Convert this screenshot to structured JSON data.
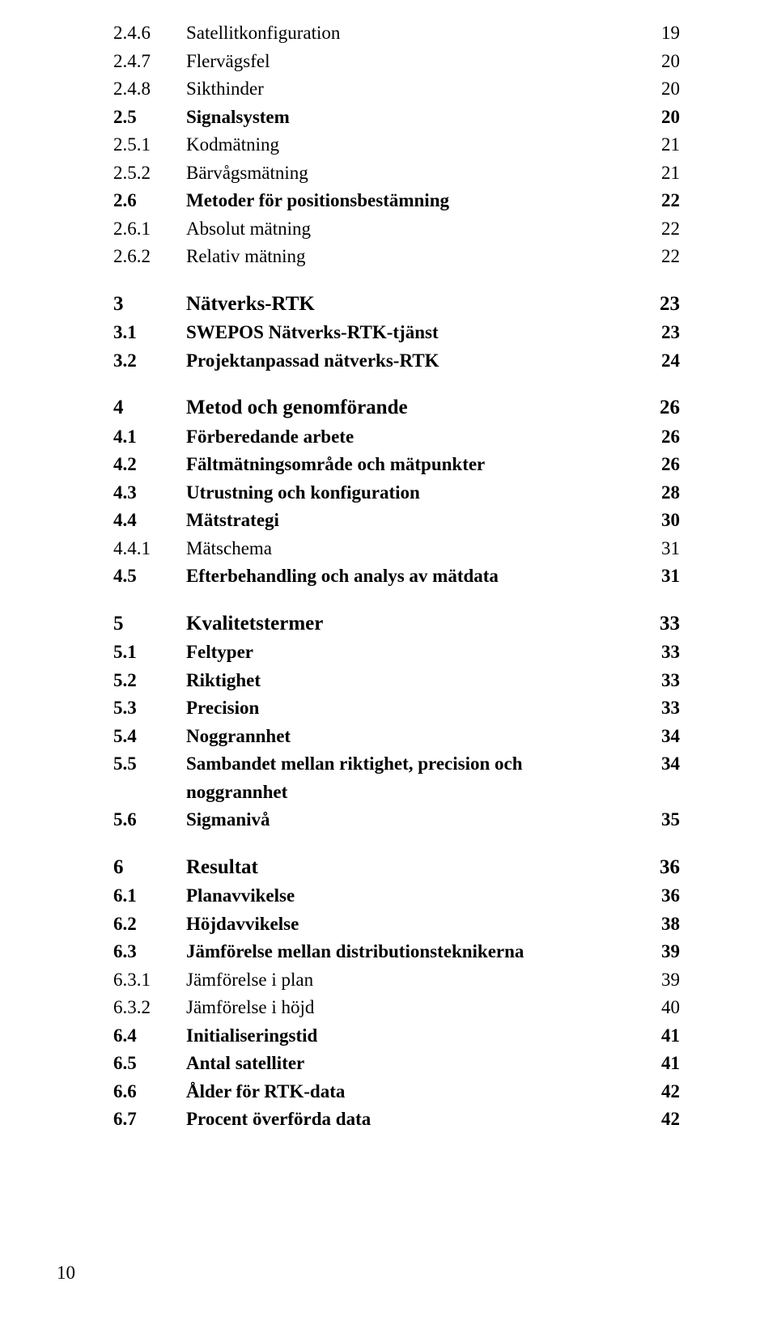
{
  "rows": [
    {
      "num": "2.4.6",
      "text": "Satellitkonfiguration",
      "page": "19",
      "bold": false,
      "chapter": false,
      "breakBefore": false
    },
    {
      "num": "2.4.7",
      "text": "Flervägsfel",
      "page": "20",
      "bold": false,
      "chapter": false,
      "breakBefore": false
    },
    {
      "num": "2.4.8",
      "text": "Sikthinder",
      "page": "20",
      "bold": false,
      "chapter": false,
      "breakBefore": false
    },
    {
      "num": "2.5",
      "text": "Signalsystem",
      "page": "20",
      "bold": true,
      "chapter": false,
      "breakBefore": false
    },
    {
      "num": "2.5.1",
      "text": "Kodmätning",
      "page": "21",
      "bold": false,
      "chapter": false,
      "breakBefore": false
    },
    {
      "num": "2.5.2",
      "text": "Bärvågsmätning",
      "page": "21",
      "bold": false,
      "chapter": false,
      "breakBefore": false
    },
    {
      "num": "2.6",
      "text": "Metoder för positionsbestämning",
      "page": "22",
      "bold": true,
      "chapter": false,
      "breakBefore": false
    },
    {
      "num": "2.6.1",
      "text": "Absolut mätning",
      "page": "22",
      "bold": false,
      "chapter": false,
      "breakBefore": false
    },
    {
      "num": "2.6.2",
      "text": "Relativ mätning",
      "page": "22",
      "bold": false,
      "chapter": false,
      "breakBefore": false
    },
    {
      "num": "3",
      "text": "Nätverks-RTK",
      "page": "23",
      "bold": true,
      "chapter": true,
      "breakBefore": true
    },
    {
      "num": "3.1",
      "text": "SWEPOS Nätverks-RTK-tjänst",
      "page": "23",
      "bold": true,
      "chapter": false,
      "breakBefore": false
    },
    {
      "num": "3.2",
      "text": "Projektanpassad nätverks-RTK",
      "page": "24",
      "bold": true,
      "chapter": false,
      "breakBefore": false
    },
    {
      "num": "4",
      "text": "Metod och genomförande",
      "page": "26",
      "bold": true,
      "chapter": true,
      "breakBefore": true
    },
    {
      "num": "4.1",
      "text": "Förberedande arbete",
      "page": "26",
      "bold": true,
      "chapter": false,
      "breakBefore": false
    },
    {
      "num": "4.2",
      "text": "Fältmätningsområde och mätpunkter",
      "page": "26",
      "bold": true,
      "chapter": false,
      "breakBefore": false
    },
    {
      "num": "4.3",
      "text": "Utrustning och konfiguration",
      "page": "28",
      "bold": true,
      "chapter": false,
      "breakBefore": false
    },
    {
      "num": "4.4",
      "text": "Mätstrategi",
      "page": "30",
      "bold": true,
      "chapter": false,
      "breakBefore": false
    },
    {
      "num": "4.4.1",
      "text": "Mätschema",
      "page": "31",
      "bold": false,
      "chapter": false,
      "breakBefore": false
    },
    {
      "num": "4.5",
      "text": "Efterbehandling och analys av mätdata",
      "page": "31",
      "bold": true,
      "chapter": false,
      "breakBefore": false
    },
    {
      "num": "5",
      "text": "Kvalitetstermer",
      "page": "33",
      "bold": true,
      "chapter": true,
      "breakBefore": true
    },
    {
      "num": "5.1",
      "text": "Feltyper",
      "page": "33",
      "bold": true,
      "chapter": false,
      "breakBefore": false
    },
    {
      "num": "5.2",
      "text": "Riktighet",
      "page": "33",
      "bold": true,
      "chapter": false,
      "breakBefore": false
    },
    {
      "num": "5.3",
      "text": "Precision",
      "page": "33",
      "bold": true,
      "chapter": false,
      "breakBefore": false
    },
    {
      "num": "5.4",
      "text": "Noggrannhet",
      "page": "34",
      "bold": true,
      "chapter": false,
      "breakBefore": false
    },
    {
      "num": "5.5",
      "text": "Sambandet mellan riktighet, precision och noggrannhet",
      "page": "34",
      "bold": true,
      "chapter": false,
      "breakBefore": false
    },
    {
      "num": "5.6",
      "text": "Sigmanivå",
      "page": "35",
      "bold": true,
      "chapter": false,
      "breakBefore": false
    },
    {
      "num": "6",
      "text": "Resultat",
      "page": "36",
      "bold": true,
      "chapter": true,
      "breakBefore": true
    },
    {
      "num": "6.1",
      "text": "Planavvikelse",
      "page": "36",
      "bold": true,
      "chapter": false,
      "breakBefore": false
    },
    {
      "num": "6.2",
      "text": "Höjdavvikelse",
      "page": "38",
      "bold": true,
      "chapter": false,
      "breakBefore": false
    },
    {
      "num": "6.3",
      "text": "Jämförelse mellan distributionsteknikerna",
      "page": "39",
      "bold": true,
      "chapter": false,
      "breakBefore": false
    },
    {
      "num": "6.3.1",
      "text": "Jämförelse i plan",
      "page": "39",
      "bold": false,
      "chapter": false,
      "breakBefore": false
    },
    {
      "num": "6.3.2",
      "text": "Jämförelse i höjd",
      "page": "40",
      "bold": false,
      "chapter": false,
      "breakBefore": false
    },
    {
      "num": "6.4",
      "text": "Initialiseringstid",
      "page": "41",
      "bold": true,
      "chapter": false,
      "breakBefore": false
    },
    {
      "num": "6.5",
      "text": "Antal satelliter",
      "page": "41",
      "bold": true,
      "chapter": false,
      "breakBefore": false
    },
    {
      "num": "6.6",
      "text": "Ålder för RTK-data",
      "page": "42",
      "bold": true,
      "chapter": false,
      "breakBefore": false
    },
    {
      "num": "6.7",
      "text": "Procent överförda data",
      "page": "42",
      "bold": true,
      "chapter": false,
      "breakBefore": false
    }
  ],
  "pageNumber": "10"
}
